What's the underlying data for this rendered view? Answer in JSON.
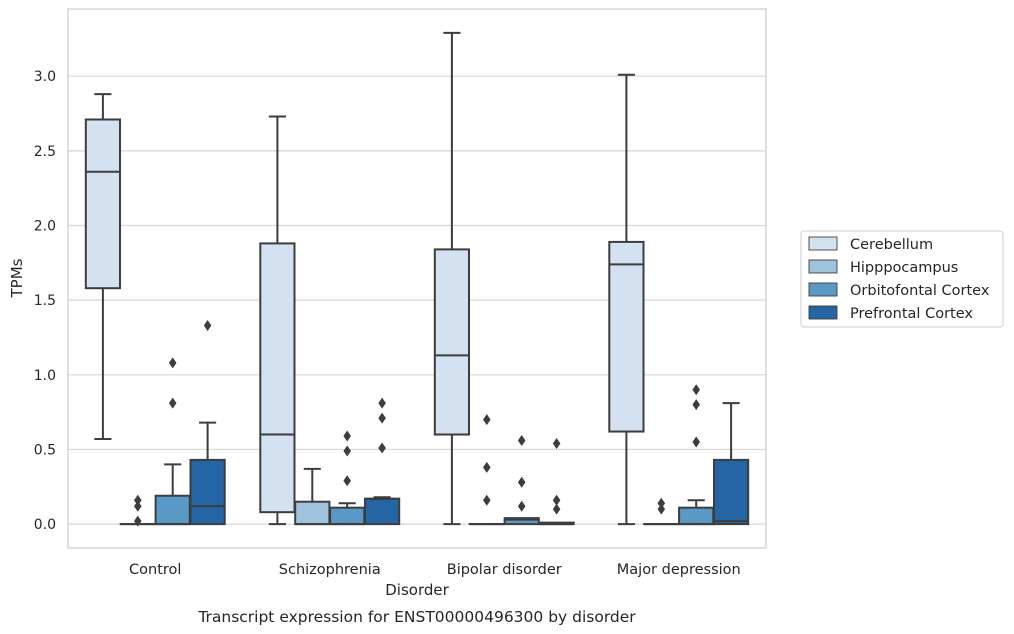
{
  "chart_data": {
    "type": "box",
    "caption": "Transcript expression for ENST00000496300 by disorder",
    "xlabel": "Disorder",
    "ylabel": "TPMs",
    "ylim": [
      -0.16,
      3.45
    ],
    "yticks": [
      "0.0",
      "0.5",
      "1.0",
      "1.5",
      "2.0",
      "2.5",
      "3.0"
    ],
    "grid": "horizontal",
    "legend_position": "right",
    "categories": [
      "Control",
      "Schizophrenia",
      "Bipolar disorder",
      "Major depression"
    ],
    "series": [
      {
        "name": "Cerebellum",
        "color": "#d3e1f0",
        "boxes": [
          {
            "whislo": 0.57,
            "q1": 1.58,
            "med": 2.36,
            "q3": 2.71,
            "whishi": 2.88,
            "fliers": []
          },
          {
            "whislo": 0.0,
            "q1": 0.08,
            "med": 0.6,
            "q3": 1.88,
            "whishi": 2.73,
            "fliers": []
          },
          {
            "whislo": 0.0,
            "q1": 0.6,
            "med": 1.13,
            "q3": 1.84,
            "whishi": 3.29,
            "fliers": []
          },
          {
            "whislo": 0.0,
            "q1": 0.62,
            "med": 1.74,
            "q3": 1.89,
            "whishi": 3.01,
            "fliers": []
          }
        ]
      },
      {
        "name": "Hipppocampus",
        "color": "#9fc2dd",
        "boxes": [
          {
            "whislo": 0.0,
            "q1": 0.0,
            "med": 0.0,
            "q3": 0.0,
            "whishi": 0.0,
            "fliers": [
              0.02,
              0.12,
              0.16
            ]
          },
          {
            "whislo": 0.0,
            "q1": 0.0,
            "med": 0.0,
            "q3": 0.15,
            "whishi": 0.37,
            "fliers": []
          },
          {
            "whislo": 0.0,
            "q1": 0.0,
            "med": 0.0,
            "q3": 0.0,
            "whishi": 0.0,
            "fliers": [
              0.16,
              0.38,
              0.7
            ]
          },
          {
            "whislo": 0.0,
            "q1": 0.0,
            "med": 0.0,
            "q3": 0.0,
            "whishi": 0.0,
            "fliers": [
              0.1,
              0.14
            ]
          }
        ]
      },
      {
        "name": "Orbitofontal Cortex",
        "color": "#5a99c5",
        "boxes": [
          {
            "whislo": 0.0,
            "q1": 0.0,
            "med": 0.0,
            "q3": 0.19,
            "whishi": 0.4,
            "fliers": [
              0.81,
              1.08
            ]
          },
          {
            "whislo": 0.0,
            "q1": 0.0,
            "med": 0.0,
            "q3": 0.11,
            "whishi": 0.14,
            "fliers": [
              0.29,
              0.49,
              0.59
            ]
          },
          {
            "whislo": 0.0,
            "q1": 0.0,
            "med": 0.03,
            "q3": 0.04,
            "whishi": 0.04,
            "fliers": [
              0.12,
              0.28,
              0.56
            ]
          },
          {
            "whislo": 0.0,
            "q1": 0.0,
            "med": 0.0,
            "q3": 0.11,
            "whishi": 0.16,
            "fliers": [
              0.55,
              0.8,
              0.9
            ]
          }
        ]
      },
      {
        "name": "Prefrontal Cortex",
        "color": "#2465a6",
        "boxes": [
          {
            "whislo": 0.0,
            "q1": 0.0,
            "med": 0.12,
            "q3": 0.43,
            "whishi": 0.68,
            "fliers": [
              1.33
            ]
          },
          {
            "whislo": 0.0,
            "q1": 0.0,
            "med": 0.17,
            "q3": 0.17,
            "whishi": 0.18,
            "fliers": [
              0.51,
              0.71,
              0.81
            ]
          },
          {
            "whislo": 0.0,
            "q1": 0.0,
            "med": 0.0,
            "q3": 0.01,
            "whishi": 0.01,
            "fliers": [
              0.1,
              0.16,
              0.54
            ]
          },
          {
            "whislo": 0.0,
            "q1": 0.0,
            "med": 0.02,
            "q3": 0.43,
            "whishi": 0.81,
            "fliers": []
          }
        ]
      }
    ]
  }
}
